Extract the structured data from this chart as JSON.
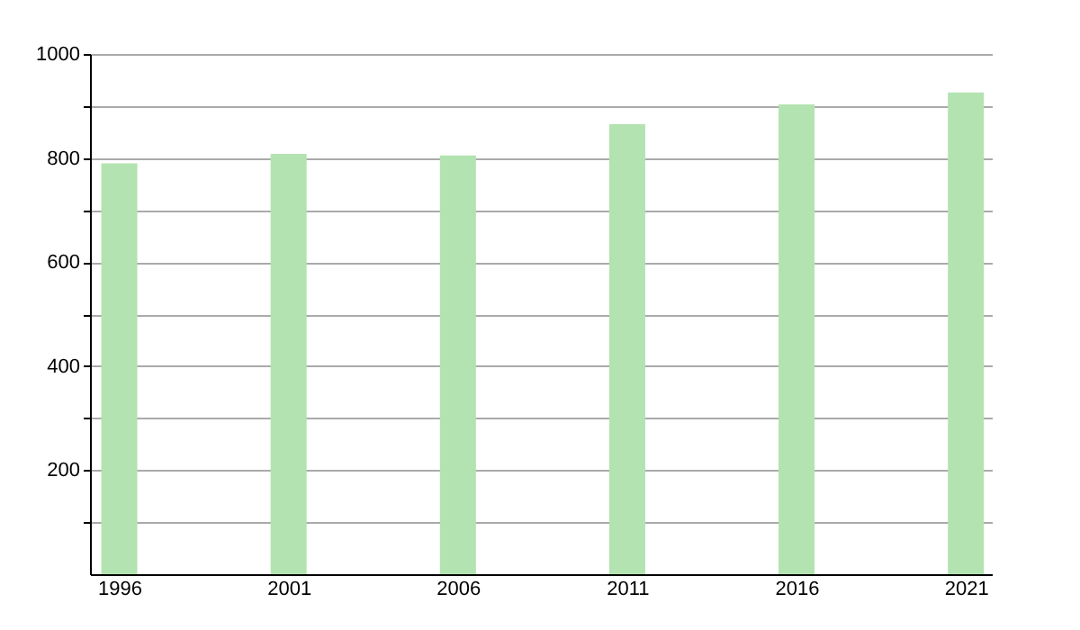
{
  "chart_data": {
    "type": "bar",
    "x": [
      1996,
      2001,
      2006,
      2011,
      2016,
      2021
    ],
    "values": [
      790,
      808,
      805,
      865,
      903,
      926
    ],
    "color": "#b3e3b0",
    "xlim": [
      1995.4,
      2021.5
    ],
    "xticks": [
      1996,
      2001,
      2006,
      2011,
      2016,
      2021
    ],
    "ylim": [
      0,
      1000
    ],
    "yticks": [
      {
        "value": 100,
        "label": null
      },
      200,
      {
        "value": 300,
        "label": null
      },
      400,
      {
        "value": 500,
        "label": null
      },
      600,
      {
        "value": 700,
        "label": null
      },
      800,
      {
        "value": 900,
        "label": null
      },
      1000
    ],
    "grid": "y"
  }
}
